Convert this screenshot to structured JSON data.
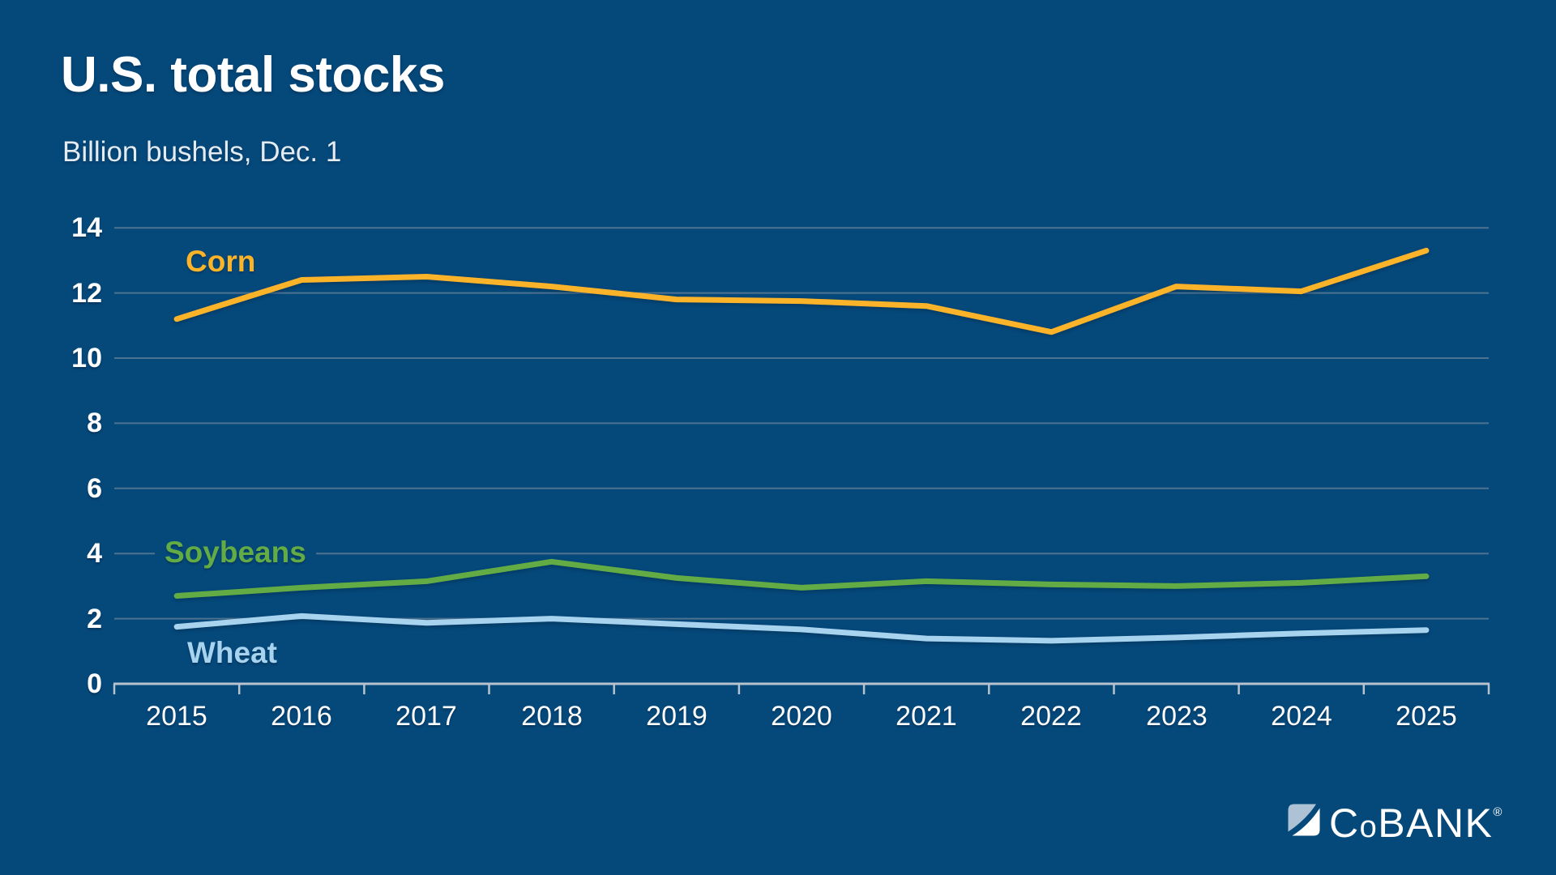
{
  "header": {
    "title": "U.S. total stocks",
    "subtitle": "Billion bushels, Dec. 1"
  },
  "chart_data": {
    "type": "line",
    "title": "U.S. total stocks",
    "unit_label": "Billion bushels, Dec. 1",
    "x": [
      2015,
      2016,
      2017,
      2018,
      2019,
      2020,
      2021,
      2022,
      2023,
      2024,
      2025
    ],
    "series": [
      {
        "name": "Corn",
        "color": "#FBB329",
        "values": [
          11.2,
          12.4,
          12.5,
          12.2,
          11.8,
          11.75,
          11.6,
          10.8,
          12.2,
          12.05,
          13.3
        ]
      },
      {
        "name": "Soybeans",
        "color": "#63AC45",
        "values": [
          2.7,
          2.95,
          3.15,
          3.75,
          3.25,
          2.95,
          3.15,
          3.05,
          3.0,
          3.1,
          3.3
        ]
      },
      {
        "name": "Wheat",
        "color": "#A7D3EF",
        "values": [
          1.75,
          2.08,
          1.87,
          2.0,
          1.83,
          1.67,
          1.39,
          1.32,
          1.42,
          1.55,
          1.65
        ]
      }
    ],
    "yticks": [
      14,
      12,
      10,
      8,
      6,
      4,
      2,
      0
    ],
    "ylim": [
      0,
      14
    ],
    "grid": true,
    "legend": "inline-labels"
  },
  "colors": {
    "background": "#05487A",
    "gridline": "#4E7390",
    "axis": "#B6C3CE",
    "tick_text": "#FFFFFF",
    "subtitle_text": "#E4EBF1",
    "logo_slate": "#ADC2D4",
    "logo_white": "#FFFFFF"
  },
  "logo": {
    "c": "C",
    "o": "o",
    "bank": "BANK",
    "registered": "®"
  }
}
